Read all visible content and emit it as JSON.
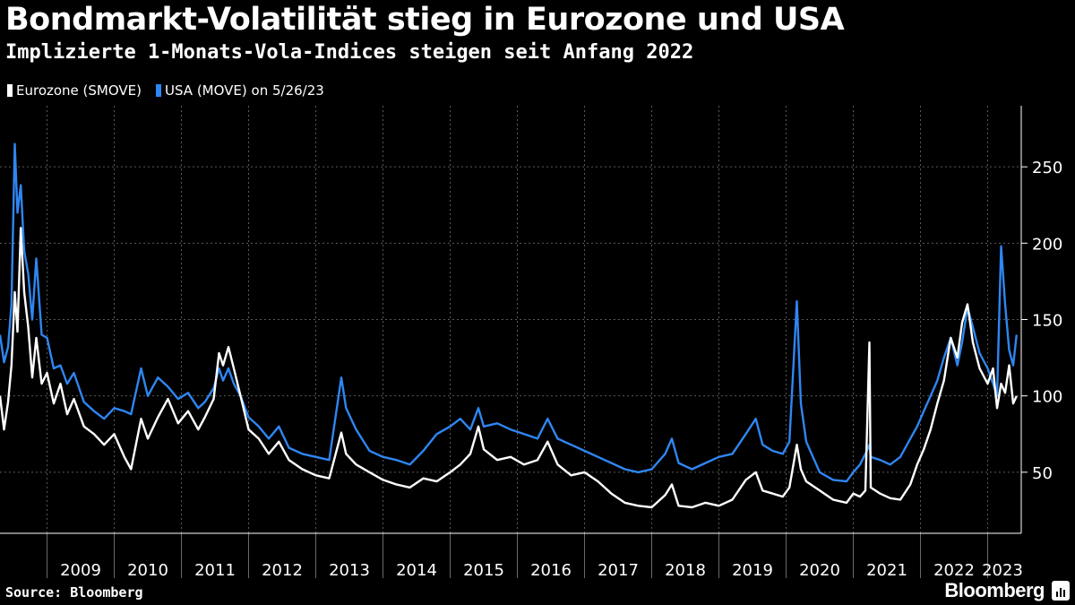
{
  "header": {
    "title": "Bondmarkt-Volatilität stieg in Eurozone und USA",
    "subtitle": "Implizierte 1-Monats-Vola-Indices steigen seit Anfang 2022"
  },
  "legend": {
    "items": [
      {
        "label": "Eurozone (SMOVE)",
        "color": "#ffffff"
      },
      {
        "label": "USA (MOVE) on 5/26/23",
        "color": "#2f86f2"
      }
    ]
  },
  "footer": {
    "source": "Source: Bloomberg",
    "brand": "Bloomberg"
  },
  "chart_data": {
    "type": "line",
    "x_unit": "decimal year",
    "xlim": [
      2008.3,
      2023.5
    ],
    "ylim": [
      10,
      290
    ],
    "yticks": [
      50,
      100,
      150,
      200,
      250
    ],
    "year_labels": [
      "2009",
      "2010",
      "2011",
      "2012",
      "2013",
      "2014",
      "2015",
      "2016",
      "2017",
      "2018",
      "2019",
      "2020",
      "2021",
      "2022",
      "2023"
    ],
    "grid": true,
    "legend_position": "top-left",
    "series": [
      {
        "name": "Eurozone (SMOVE)",
        "color": "#ffffff",
        "points": [
          [
            2008.3,
            100
          ],
          [
            2008.36,
            78
          ],
          [
            2008.42,
            96
          ],
          [
            2008.47,
            120
          ],
          [
            2008.52,
            168
          ],
          [
            2008.56,
            142
          ],
          [
            2008.61,
            210
          ],
          [
            2008.66,
            168
          ],
          [
            2008.72,
            145
          ],
          [
            2008.78,
            112
          ],
          [
            2008.84,
            138
          ],
          [
            2008.92,
            108
          ],
          [
            2009.0,
            115
          ],
          [
            2009.1,
            95
          ],
          [
            2009.2,
            108
          ],
          [
            2009.3,
            88
          ],
          [
            2009.4,
            98
          ],
          [
            2009.55,
            80
          ],
          [
            2009.7,
            75
          ],
          [
            2009.85,
            68
          ],
          [
            2010.0,
            75
          ],
          [
            2010.15,
            60
          ],
          [
            2010.25,
            52
          ],
          [
            2010.4,
            85
          ],
          [
            2010.5,
            72
          ],
          [
            2010.65,
            86
          ],
          [
            2010.8,
            98
          ],
          [
            2010.95,
            82
          ],
          [
            2011.1,
            90
          ],
          [
            2011.25,
            78
          ],
          [
            2011.35,
            86
          ],
          [
            2011.48,
            98
          ],
          [
            2011.56,
            128
          ],
          [
            2011.62,
            120
          ],
          [
            2011.7,
            132
          ],
          [
            2011.78,
            118
          ],
          [
            2011.88,
            100
          ],
          [
            2012.0,
            78
          ],
          [
            2012.15,
            72
          ],
          [
            2012.3,
            62
          ],
          [
            2012.45,
            70
          ],
          [
            2012.6,
            58
          ],
          [
            2012.8,
            52
          ],
          [
            2013.0,
            48
          ],
          [
            2013.2,
            46
          ],
          [
            2013.38,
            76
          ],
          [
            2013.45,
            62
          ],
          [
            2013.6,
            55
          ],
          [
            2013.8,
            50
          ],
          [
            2014.0,
            45
          ],
          [
            2014.2,
            42
          ],
          [
            2014.4,
            40
          ],
          [
            2014.6,
            46
          ],
          [
            2014.8,
            44
          ],
          [
            2015.0,
            50
          ],
          [
            2015.15,
            55
          ],
          [
            2015.3,
            62
          ],
          [
            2015.42,
            80
          ],
          [
            2015.5,
            65
          ],
          [
            2015.7,
            58
          ],
          [
            2015.9,
            60
          ],
          [
            2016.1,
            55
          ],
          [
            2016.3,
            58
          ],
          [
            2016.45,
            70
          ],
          [
            2016.6,
            55
          ],
          [
            2016.8,
            48
          ],
          [
            2017.0,
            50
          ],
          [
            2017.2,
            44
          ],
          [
            2017.4,
            36
          ],
          [
            2017.6,
            30
          ],
          [
            2017.8,
            28
          ],
          [
            2018.0,
            27
          ],
          [
            2018.2,
            35
          ],
          [
            2018.3,
            42
          ],
          [
            2018.4,
            28
          ],
          [
            2018.6,
            27
          ],
          [
            2018.8,
            30
          ],
          [
            2019.0,
            28
          ],
          [
            2019.2,
            32
          ],
          [
            2019.4,
            45
          ],
          [
            2019.55,
            50
          ],
          [
            2019.65,
            38
          ],
          [
            2019.8,
            36
          ],
          [
            2019.95,
            34
          ],
          [
            2020.05,
            40
          ],
          [
            2020.16,
            68
          ],
          [
            2020.22,
            52
          ],
          [
            2020.3,
            44
          ],
          [
            2020.5,
            38
          ],
          [
            2020.7,
            32
          ],
          [
            2020.9,
            30
          ],
          [
            2021.0,
            36
          ],
          [
            2021.1,
            34
          ],
          [
            2021.18,
            38
          ],
          [
            2021.24,
            135
          ],
          [
            2021.26,
            40
          ],
          [
            2021.4,
            36
          ],
          [
            2021.55,
            33
          ],
          [
            2021.7,
            32
          ],
          [
            2021.85,
            42
          ],
          [
            2021.95,
            55
          ],
          [
            2022.05,
            65
          ],
          [
            2022.15,
            78
          ],
          [
            2022.25,
            95
          ],
          [
            2022.35,
            110
          ],
          [
            2022.45,
            138
          ],
          [
            2022.55,
            125
          ],
          [
            2022.62,
            148
          ],
          [
            2022.7,
            160
          ],
          [
            2022.78,
            135
          ],
          [
            2022.88,
            118
          ],
          [
            2023.0,
            108
          ],
          [
            2023.08,
            118
          ],
          [
            2023.14,
            92
          ],
          [
            2023.2,
            108
          ],
          [
            2023.26,
            102
          ],
          [
            2023.32,
            120
          ],
          [
            2023.38,
            95
          ],
          [
            2023.43,
            100
          ]
        ]
      },
      {
        "name": "USA (MOVE) on 5/26/23",
        "color": "#2f86f2",
        "points": [
          [
            2008.3,
            140
          ],
          [
            2008.36,
            122
          ],
          [
            2008.42,
            132
          ],
          [
            2008.47,
            160
          ],
          [
            2008.52,
            265
          ],
          [
            2008.56,
            220
          ],
          [
            2008.61,
            238
          ],
          [
            2008.66,
            195
          ],
          [
            2008.72,
            180
          ],
          [
            2008.78,
            150
          ],
          [
            2008.84,
            190
          ],
          [
            2008.92,
            140
          ],
          [
            2009.0,
            138
          ],
          [
            2009.1,
            118
          ],
          [
            2009.2,
            120
          ],
          [
            2009.3,
            108
          ],
          [
            2009.4,
            115
          ],
          [
            2009.55,
            96
          ],
          [
            2009.7,
            90
          ],
          [
            2009.85,
            85
          ],
          [
            2010.0,
            92
          ],
          [
            2010.15,
            90
          ],
          [
            2010.25,
            88
          ],
          [
            2010.4,
            118
          ],
          [
            2010.5,
            100
          ],
          [
            2010.65,
            112
          ],
          [
            2010.8,
            106
          ],
          [
            2010.95,
            98
          ],
          [
            2011.1,
            102
          ],
          [
            2011.25,
            92
          ],
          [
            2011.35,
            96
          ],
          [
            2011.48,
            105
          ],
          [
            2011.56,
            118
          ],
          [
            2011.62,
            110
          ],
          [
            2011.7,
            118
          ],
          [
            2011.78,
            108
          ],
          [
            2011.88,
            100
          ],
          [
            2012.0,
            86
          ],
          [
            2012.15,
            80
          ],
          [
            2012.3,
            72
          ],
          [
            2012.45,
            80
          ],
          [
            2012.6,
            66
          ],
          [
            2012.8,
            62
          ],
          [
            2013.0,
            60
          ],
          [
            2013.2,
            58
          ],
          [
            2013.38,
            112
          ],
          [
            2013.45,
            92
          ],
          [
            2013.6,
            78
          ],
          [
            2013.8,
            64
          ],
          [
            2014.0,
            60
          ],
          [
            2014.2,
            58
          ],
          [
            2014.4,
            55
          ],
          [
            2014.6,
            64
          ],
          [
            2014.8,
            75
          ],
          [
            2015.0,
            80
          ],
          [
            2015.15,
            85
          ],
          [
            2015.3,
            78
          ],
          [
            2015.42,
            92
          ],
          [
            2015.5,
            80
          ],
          [
            2015.7,
            82
          ],
          [
            2015.9,
            78
          ],
          [
            2016.1,
            75
          ],
          [
            2016.3,
            72
          ],
          [
            2016.45,
            85
          ],
          [
            2016.6,
            72
          ],
          [
            2016.8,
            68
          ],
          [
            2017.0,
            64
          ],
          [
            2017.2,
            60
          ],
          [
            2017.4,
            56
          ],
          [
            2017.6,
            52
          ],
          [
            2017.8,
            50
          ],
          [
            2018.0,
            52
          ],
          [
            2018.2,
            62
          ],
          [
            2018.3,
            72
          ],
          [
            2018.4,
            56
          ],
          [
            2018.6,
            52
          ],
          [
            2018.8,
            56
          ],
          [
            2019.0,
            60
          ],
          [
            2019.2,
            62
          ],
          [
            2019.4,
            75
          ],
          [
            2019.55,
            85
          ],
          [
            2019.65,
            68
          ],
          [
            2019.8,
            64
          ],
          [
            2019.95,
            62
          ],
          [
            2020.05,
            70
          ],
          [
            2020.16,
            162
          ],
          [
            2020.22,
            95
          ],
          [
            2020.3,
            70
          ],
          [
            2020.5,
            50
          ],
          [
            2020.7,
            45
          ],
          [
            2020.9,
            44
          ],
          [
            2021.0,
            50
          ],
          [
            2021.1,
            55
          ],
          [
            2021.18,
            62
          ],
          [
            2021.24,
            68
          ],
          [
            2021.26,
            60
          ],
          [
            2021.4,
            58
          ],
          [
            2021.55,
            55
          ],
          [
            2021.7,
            60
          ],
          [
            2021.85,
            72
          ],
          [
            2021.95,
            80
          ],
          [
            2022.05,
            90
          ],
          [
            2022.15,
            100
          ],
          [
            2022.25,
            110
          ],
          [
            2022.35,
            125
          ],
          [
            2022.45,
            138
          ],
          [
            2022.55,
            120
          ],
          [
            2022.62,
            135
          ],
          [
            2022.7,
            158
          ],
          [
            2022.78,
            145
          ],
          [
            2022.88,
            128
          ],
          [
            2023.0,
            118
          ],
          [
            2023.08,
            108
          ],
          [
            2023.14,
            100
          ],
          [
            2023.2,
            198
          ],
          [
            2023.26,
            160
          ],
          [
            2023.32,
            130
          ],
          [
            2023.38,
            120
          ],
          [
            2023.43,
            140
          ]
        ]
      }
    ]
  }
}
